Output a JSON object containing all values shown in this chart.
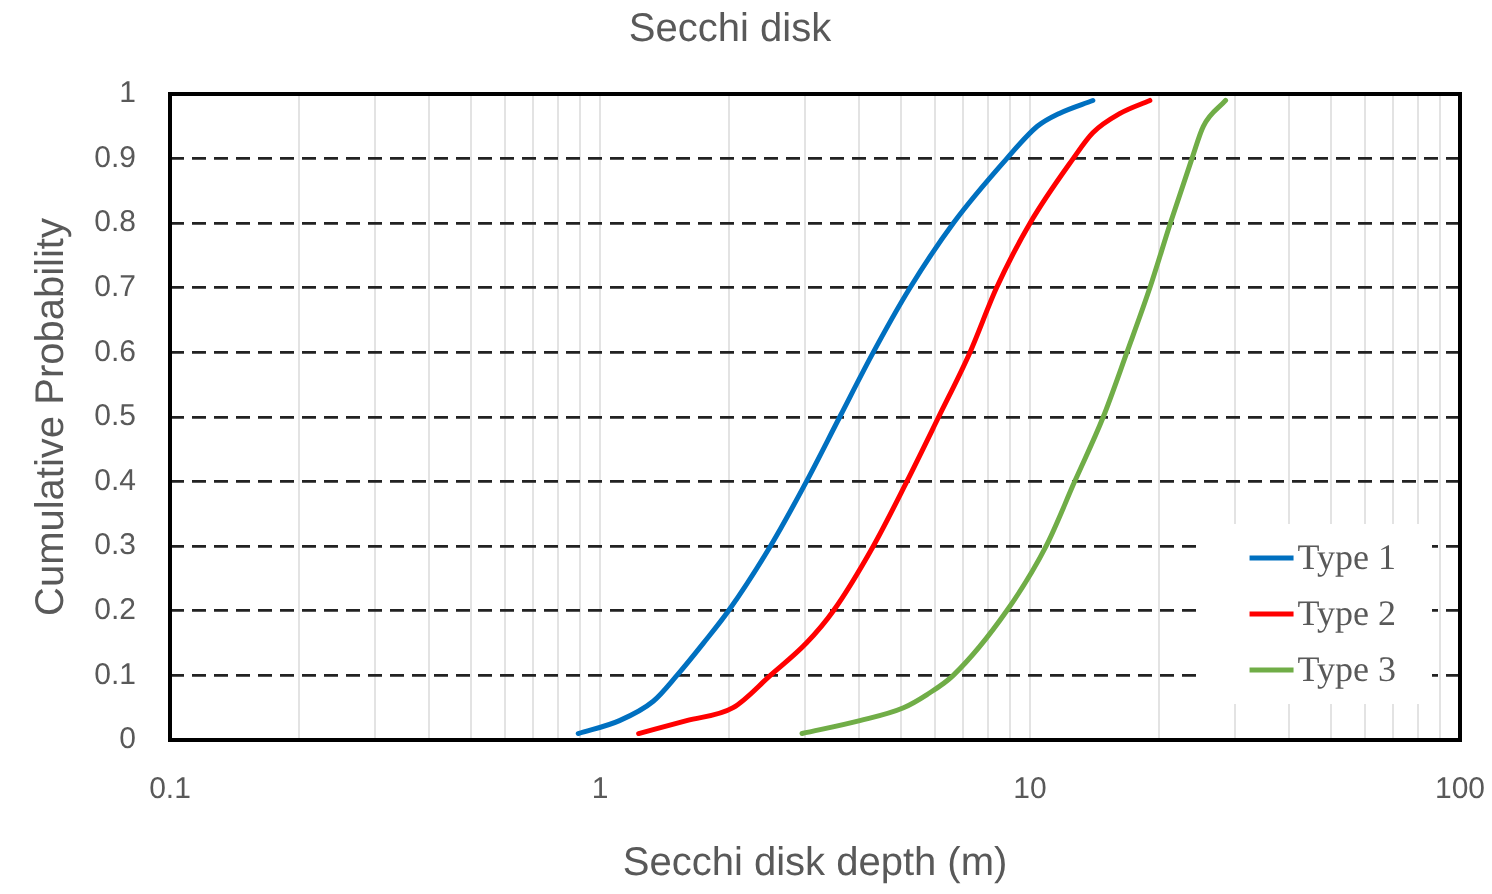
{
  "chart_data": {
    "type": "line",
    "title": "Secchi disk",
    "xlabel": "Secchi disk depth (m)",
    "ylabel": "Cumulative Probability",
    "series": [
      {
        "name": "Type 1",
        "color": "#0070c0",
        "x": [
          0.89,
          1.11,
          1.33,
          1.51,
          1.74,
          1.99,
          2.49,
          3.02,
          3.61,
          4.32,
          5.26,
          6.63,
          8.83,
          10.4,
          11.7,
          14.0
        ],
        "values": [
          0.01,
          0.03,
          0.06,
          0.1,
          0.15,
          0.2,
          0.3,
          0.4,
          0.5,
          0.6,
          0.7,
          0.8,
          0.9,
          0.95,
          0.97,
          0.99
        ]
      },
      {
        "name": "Type 2",
        "color": "#ff0000",
        "x": [
          1.23,
          1.59,
          2.04,
          2.49,
          3.02,
          3.49,
          4.32,
          5.17,
          6.13,
          7.25,
          8.36,
          10.0,
          12.6,
          14.0,
          16.2,
          19.0
        ],
        "values": [
          0.01,
          0.03,
          0.05,
          0.1,
          0.15,
          0.2,
          0.3,
          0.4,
          0.5,
          0.6,
          0.7,
          0.8,
          0.9,
          0.94,
          0.97,
          0.99
        ]
      },
      {
        "name": "Type 3",
        "color": "#70ad47",
        "x": [
          2.95,
          4.02,
          5.08,
          5.75,
          6.63,
          8.83,
          10.9,
          12.7,
          14.8,
          16.8,
          19.0,
          21.2,
          23.8,
          25.3,
          28.5
        ],
        "values": [
          0.01,
          0.03,
          0.05,
          0.07,
          0.1,
          0.2,
          0.3,
          0.4,
          0.5,
          0.6,
          0.7,
          0.8,
          0.9,
          0.95,
          0.99
        ]
      }
    ],
    "xlim": [
      0.1,
      100
    ],
    "xticks": [
      0.1,
      {
        "value": 0.2,
        "label": null
      },
      {
        "value": 0.3,
        "label": null
      },
      {
        "value": 0.4,
        "label": null
      },
      {
        "value": 0.5,
        "label": null
      },
      {
        "value": 0.6,
        "label": null
      },
      {
        "value": 0.7,
        "label": null
      },
      {
        "value": 0.8,
        "label": null
      },
      {
        "value": 0.9,
        "label": null
      },
      1,
      {
        "value": 2,
        "label": null
      },
      {
        "value": 3,
        "label": null
      },
      {
        "value": 4,
        "label": null
      },
      {
        "value": 5,
        "label": null
      },
      {
        "value": 6,
        "label": null
      },
      {
        "value": 7,
        "label": null
      },
      {
        "value": 8,
        "label": null
      },
      {
        "value": 9,
        "label": null
      },
      10,
      {
        "value": 20,
        "label": null
      },
      {
        "value": 30,
        "label": null
      },
      {
        "value": 40,
        "label": null
      },
      {
        "value": 50,
        "label": null
      },
      {
        "value": 60,
        "label": null
      },
      {
        "value": 70,
        "label": null
      },
      {
        "value": 80,
        "label": null
      },
      {
        "value": 90,
        "label": null
      },
      100
    ],
    "ylim": [
      0,
      1
    ],
    "yticks": [
      0,
      0.1,
      0.2,
      0.3,
      0.4,
      0.5,
      0.6,
      0.7,
      0.8,
      0.9,
      1
    ],
    "log": "x",
    "grid": true,
    "legend": "bottom right"
  }
}
